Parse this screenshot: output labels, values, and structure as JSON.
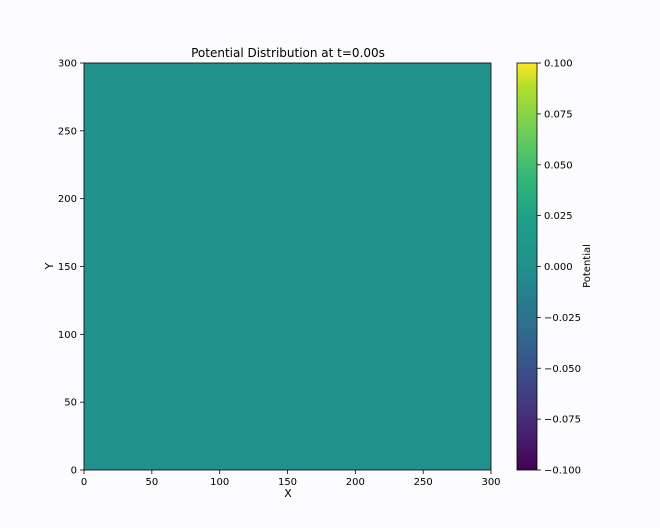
{
  "chart_data": {
    "type": "heatmap",
    "title": "Potential Distribution at t=0.00s",
    "xlabel": "X",
    "ylabel": "Y",
    "xlim": [
      0,
      300
    ],
    "ylim": [
      0,
      300
    ],
    "x_ticks": [
      0,
      50,
      100,
      150,
      200,
      250,
      300
    ],
    "y_ticks": [
      0,
      50,
      100,
      150,
      200,
      250,
      300
    ],
    "x_tick_labels": [
      "0",
      "50",
      "100",
      "150",
      "200",
      "250",
      "300"
    ],
    "y_tick_labels": [
      "0",
      "50",
      "100",
      "150",
      "200",
      "250",
      "300"
    ],
    "field_value": 0.0,
    "field_color": "#21918c",
    "colormap": "viridis",
    "colorbar": {
      "label": "Potential",
      "vmin": -0.1,
      "vmax": 0.1,
      "ticks": [
        -0.1,
        -0.075,
        -0.05,
        -0.025,
        0.0,
        0.025,
        0.05,
        0.075,
        0.1
      ],
      "tick_labels": [
        "−0.100",
        "−0.075",
        "−0.050",
        "−0.025",
        "0.000",
        "0.025",
        "0.050",
        "0.075",
        "0.100"
      ]
    },
    "grid": false
  }
}
